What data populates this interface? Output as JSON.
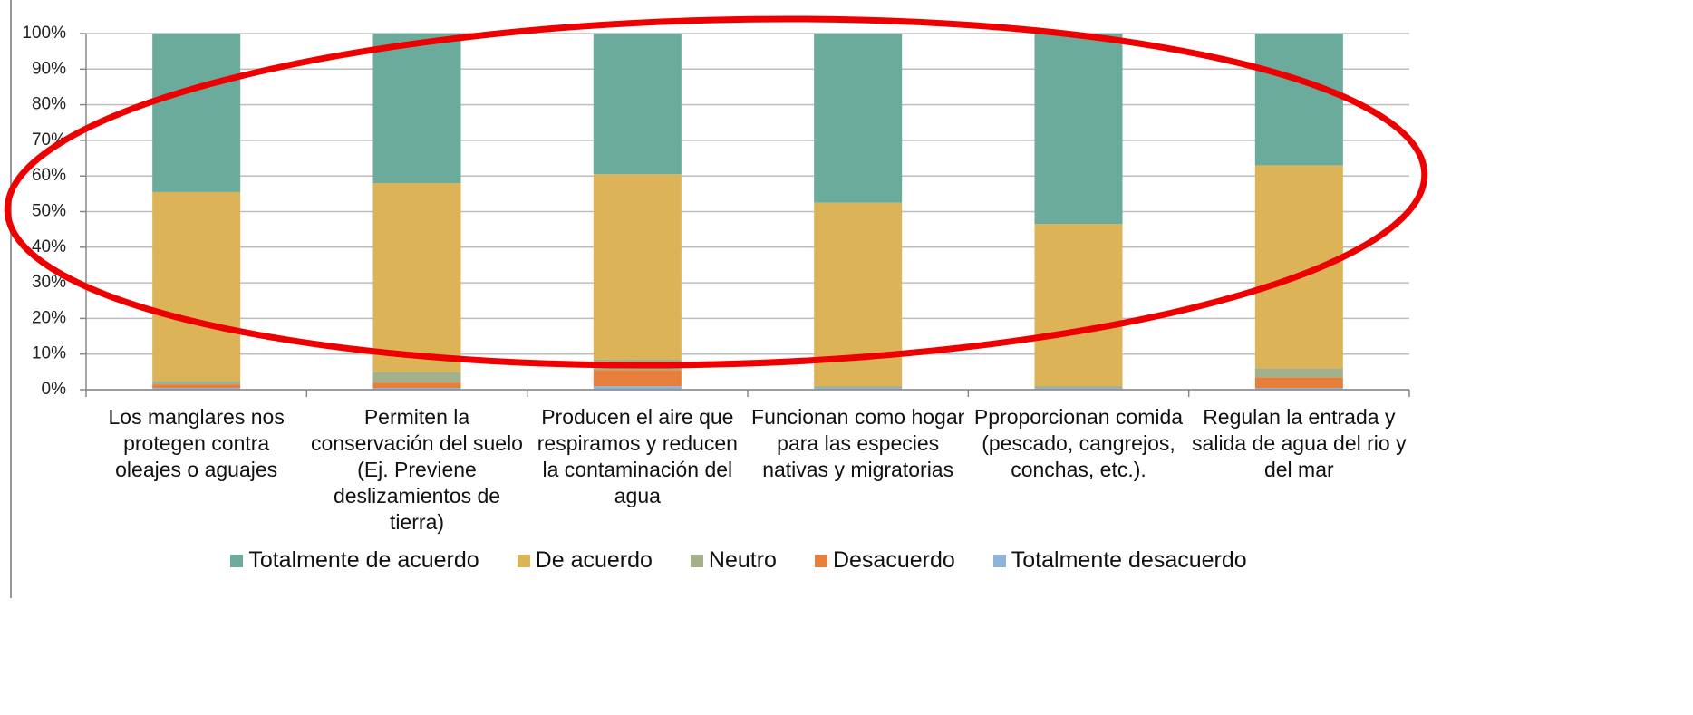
{
  "chart_data": {
    "type": "stacked_bar_percent",
    "categories": [
      "Los manglares nos protegen contra oleajes o aguajes",
      "Permiten la conservación del suelo (Ej. Previene deslizamientos de tierra)",
      "Producen el aire que respiramos y reducen la contaminación del agua",
      "Funcionan como hogar para las especies nativas y migratorias",
      "Pproporcionan comida (pescado, cangrejos, conchas, etc.).",
      "Regulan la entrada y salida de agua del rio y del mar"
    ],
    "series": [
      {
        "name": "Totalmente de acuerdo",
        "color": "#6aab9c",
        "values": [
          44.5,
          42,
          39.5,
          47.5,
          53.5,
          37
        ]
      },
      {
        "name": "De acuerdo",
        "color": "#ddb357",
        "values": [
          53,
          53,
          52,
          51.5,
          45.5,
          57
        ]
      },
      {
        "name": "Neutro",
        "color": "#a3b18a",
        "values": [
          1,
          3,
          3,
          0.5,
          0.5,
          2.5
        ]
      },
      {
        "name": "Desacuerdo",
        "color": "#e87e3c",
        "values": [
          1,
          1.5,
          4.5,
          0,
          0,
          3
        ]
      },
      {
        "name": "Totalmente desacuerdo",
        "color": "#8fb4d9",
        "values": [
          0.5,
          0.5,
          1,
          0.5,
          0.5,
          0.5
        ]
      }
    ],
    "ylim": [
      0,
      100
    ],
    "yticks": [
      {
        "value": 0,
        "label": "0%"
      },
      {
        "value": 10,
        "label": "10%"
      },
      {
        "value": 20,
        "label": "20%"
      },
      {
        "value": 30,
        "label": "30%"
      },
      {
        "value": 40,
        "label": "40%"
      },
      {
        "value": 50,
        "label": "50%"
      },
      {
        "value": 60,
        "label": "60%"
      },
      {
        "value": 70,
        "label": "70%"
      },
      {
        "value": 80,
        "label": "80%"
      },
      {
        "value": 90,
        "label": "90%"
      },
      {
        "value": 100,
        "label": "100%"
      }
    ],
    "grid": true,
    "legend": "bottom"
  }
}
